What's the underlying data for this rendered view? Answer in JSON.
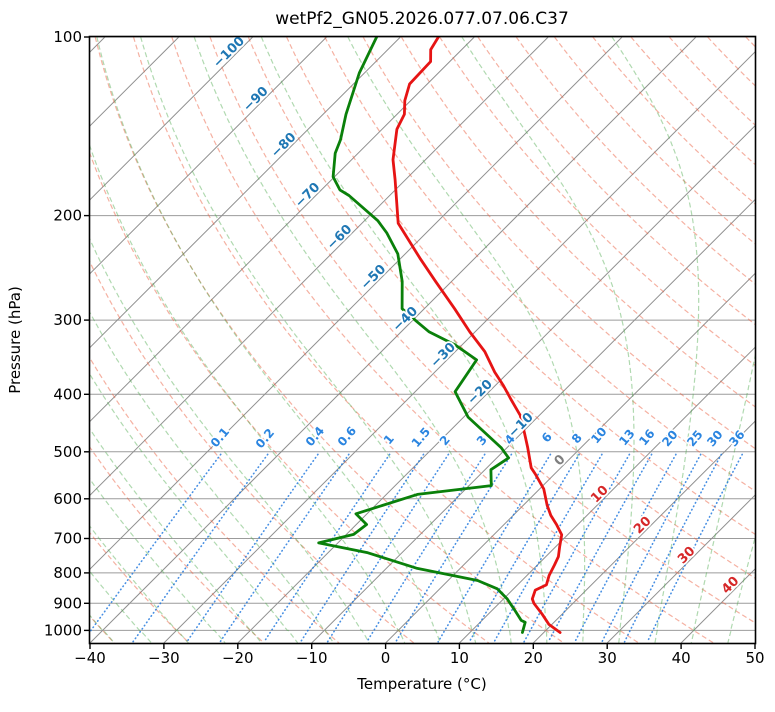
{
  "chart_data": {
    "type": "line",
    "subtype": "skew-t-log-p-sounding",
    "title": "wetPf2_GN05.2026.077.07.06.C37",
    "xlabel": "Temperature (°C)",
    "ylabel": "Pressure (hPa)",
    "xlim": [
      -40,
      50
    ],
    "ylim": [
      100,
      1050
    ],
    "skew_deg": 45,
    "grid": true,
    "x_ticks": [
      -40,
      -30,
      -20,
      -10,
      0,
      10,
      20,
      30,
      40,
      50
    ],
    "y_ticks": [
      100,
      200,
      300,
      400,
      500,
      600,
      700,
      800,
      900,
      1000
    ],
    "isotherms": {
      "start": -120,
      "end": 50,
      "step": 10
    },
    "dry_adiabats": {
      "start": -40,
      "end": 200,
      "step": 10
    },
    "moist_adiabats": {
      "start": -70,
      "end": 45,
      "step": 5
    },
    "mixing_ratios": [
      0.1,
      0.2,
      0.4,
      0.6,
      1,
      1.5,
      2,
      3,
      4,
      6,
      8,
      10,
      13,
      16,
      20,
      25,
      30,
      36
    ],
    "mixing_ratio_top_hpa": 505,
    "isotherm_labels": [
      {
        "t": -100,
        "y": 55
      },
      {
        "t": -90,
        "y": 102
      },
      {
        "t": -80,
        "y": 148
      },
      {
        "t": -70,
        "y": 198
      },
      {
        "t": -60,
        "y": 240
      },
      {
        "t": -50,
        "y": 280
      },
      {
        "t": -40,
        "y": 322
      },
      {
        "t": -30,
        "y": 358
      },
      {
        "t": -20,
        "y": 395
      },
      {
        "t": -10,
        "y": 428
      },
      {
        "t": 0,
        "y": 463
      },
      {
        "t": 10,
        "y": 497
      },
      {
        "t": 20,
        "y": 528
      },
      {
        "t": 30,
        "y": 558
      },
      {
        "t": 40,
        "y": 588
      }
    ],
    "mixing_labels": [
      {
        "w": "0.1",
        "x": 223,
        "y": 440
      },
      {
        "w": "0.2",
        "x": 268,
        "y": 441
      },
      {
        "w": "0.4",
        "x": 318,
        "y": 439
      },
      {
        "w": "0.6",
        "x": 350,
        "y": 439
      },
      {
        "w": "1",
        "x": 392,
        "y": 442
      },
      {
        "w": "1.5",
        "x": 424,
        "y": 440
      },
      {
        "w": "2",
        "x": 448,
        "y": 443
      },
      {
        "w": "3",
        "x": 485,
        "y": 443
      },
      {
        "w": "4",
        "x": 513,
        "y": 442
      },
      {
        "w": "6",
        "x": 550,
        "y": 440
      },
      {
        "w": "8",
        "x": 580,
        "y": 441
      },
      {
        "w": "10",
        "x": 602,
        "y": 438
      },
      {
        "w": "13",
        "x": 630,
        "y": 440
      },
      {
        "w": "16",
        "x": 650,
        "y": 440
      },
      {
        "w": "20",
        "x": 673,
        "y": 441
      },
      {
        "w": "25",
        "x": 698,
        "y": 441
      },
      {
        "w": "30",
        "x": 718,
        "y": 441
      },
      {
        "w": "36",
        "x": 740,
        "y": 441
      }
    ],
    "series": [
      {
        "name": "temperature",
        "color": "#e61414",
        "points": [
          [
            99,
            -75
          ],
          [
            105,
            -74.2
          ],
          [
            110,
            -72.6
          ],
          [
            120,
            -72.4
          ],
          [
            128,
            -70.8
          ],
          [
            135,
            -69
          ],
          [
            143,
            -68
          ],
          [
            161,
            -64.4
          ],
          [
            174,
            -61.4
          ],
          [
            206,
            -55.1
          ],
          [
            236,
            -47.4
          ],
          [
            258,
            -42.2
          ],
          [
            287,
            -35.9
          ],
          [
            314,
            -30.7
          ],
          [
            339,
            -26
          ],
          [
            367,
            -21.9
          ],
          [
            386,
            -19
          ],
          [
            408,
            -16
          ],
          [
            434,
            -12.6
          ],
          [
            465,
            -9.6
          ],
          [
            492,
            -7.2
          ],
          [
            532,
            -4
          ],
          [
            545,
            -2.6
          ],
          [
            578,
            0.6
          ],
          [
            615,
            3.2
          ],
          [
            640,
            5.1
          ],
          [
            663,
            7.1
          ],
          [
            690,
            9.2
          ],
          [
            722,
            10.5
          ],
          [
            751,
            11.7
          ],
          [
            776,
            12.3
          ],
          [
            808,
            13
          ],
          [
            838,
            13.9
          ],
          [
            855,
            13.1
          ],
          [
            885,
            13.9
          ],
          [
            900,
            14.7
          ],
          [
            939,
            17.3
          ],
          [
            977,
            19.6
          ],
          [
            1008,
            22.2
          ]
        ]
      },
      {
        "name": "dewpoint",
        "color": "#0a800a",
        "points": [
          [
            99,
            -83.4
          ],
          [
            115,
            -80.7
          ],
          [
            135,
            -76.9
          ],
          [
            149,
            -74.2
          ],
          [
            157,
            -73.1
          ],
          [
            172,
            -70.2
          ],
          [
            181,
            -67.5
          ],
          [
            185,
            -65.5
          ],
          [
            204,
            -58.2
          ],
          [
            214,
            -55.3
          ],
          [
            232,
            -51
          ],
          [
            258,
            -46.7
          ],
          [
            287,
            -43
          ],
          [
            302,
            -39.2
          ],
          [
            314,
            -36.2
          ],
          [
            330,
            -31
          ],
          [
            350,
            -26
          ],
          [
            396,
            -24.6
          ],
          [
            437,
            -19.4
          ],
          [
            492,
            -10.8
          ],
          [
            512,
            -8.4
          ],
          [
            536,
            -9.2
          ],
          [
            570,
            -7
          ],
          [
            590,
            -15.8
          ],
          [
            636,
            -21.5
          ],
          [
            663,
            -18.6
          ],
          [
            689,
            -19
          ],
          [
            712,
            -22.6
          ],
          [
            740,
            -14.6
          ],
          [
            786,
            -5.8
          ],
          [
            824,
            4
          ],
          [
            851,
            7.8
          ],
          [
            885,
            10.5
          ],
          [
            927,
            13.2
          ],
          [
            962,
            15.3
          ],
          [
            969,
            16.1
          ],
          [
            1008,
            17.1
          ]
        ]
      }
    ],
    "palette": {
      "isotherm_line": "#8f8f8f",
      "grid_line": "#9b9b9b",
      "dry_adiabat": "rgba(235,100,70,0.5)",
      "moist_adiabat": "rgba(80,170,80,0.45)",
      "mixing_line": "rgba(25,115,220,0.8)",
      "isotherm_label_neg": "#1f77b4",
      "isotherm_label_zero": "#7f7f7f",
      "isotherm_label_pos": "#d62728",
      "mixing_label": "#2b85e0",
      "frame": "#000000"
    }
  }
}
